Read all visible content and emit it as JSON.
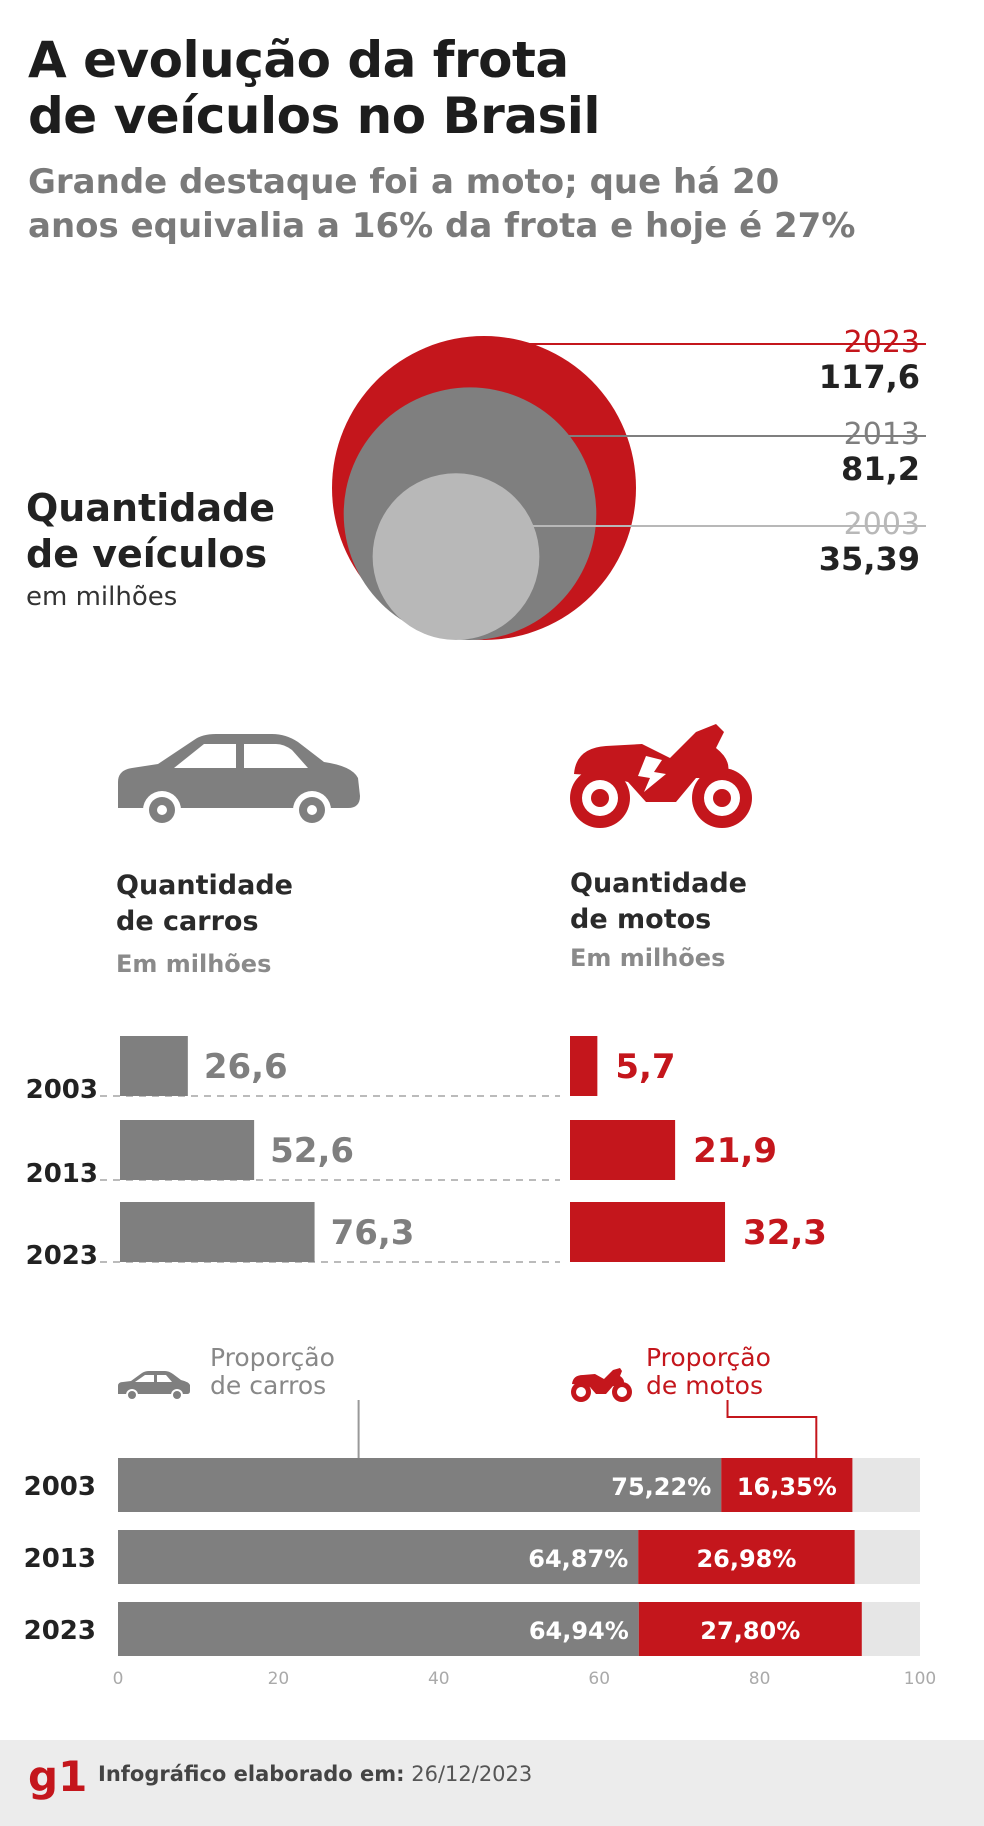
{
  "header": {
    "title_line1": "A evolução da frota",
    "title_line2": "de veículos no Brasil",
    "subtitle_line1": "Grande destaque foi a moto; que há 20",
    "subtitle_line2": "anos equivalia a 16% da frota e hoje é 27%"
  },
  "colors": {
    "red": "#c4161c",
    "gray": "#7f7f7f",
    "light_gray": "#b8b8b8",
    "track": "#e6e6e6"
  },
  "icons": {
    "car": "car-icon",
    "moto": "motorcycle-icon"
  },
  "chart_data": [
    {
      "type": "bubble",
      "title_line1": "Quantidade",
      "title_line2": "de veículos",
      "unit": "em milhões",
      "items": [
        {
          "year": "2023",
          "value": 117.6,
          "label": "117,6"
        },
        {
          "year": "2013",
          "value": 81.2,
          "label": "81,2"
        },
        {
          "year": "2003",
          "value": 35.39,
          "label": "35,39"
        }
      ]
    },
    {
      "type": "bar",
      "orientation": "horizontal",
      "title_line1": "Quantidade",
      "title_line2": "de carros",
      "unit": "Em milhões",
      "categories": [
        "2003",
        "2013",
        "2023"
      ],
      "values": [
        26.6,
        52.6,
        76.3
      ],
      "labels": [
        "26,6",
        "52,6",
        "76,3"
      ]
    },
    {
      "type": "bar",
      "orientation": "horizontal",
      "title_line1": "Quantidade",
      "title_line2": "de motos",
      "unit": "Em milhões",
      "categories": [
        "2003",
        "2013",
        "2023"
      ],
      "values": [
        5.7,
        21.9,
        32.3
      ],
      "labels": [
        "5,7",
        "21,9",
        "32,3"
      ]
    },
    {
      "type": "stacked-bar",
      "orientation": "horizontal",
      "categories": [
        "2003",
        "2013",
        "2023"
      ],
      "xlim": [
        0,
        100
      ],
      "ticks": [
        "0",
        "20",
        "40",
        "60",
        "80",
        "100"
      ],
      "series": [
        {
          "name_line1": "Proporção",
          "name_line2": "de carros",
          "values": [
            75.22,
            64.87,
            64.94
          ],
          "labels": [
            "75,22%",
            "64,87%",
            "64,94%"
          ]
        },
        {
          "name_line1": "Proporção",
          "name_line2": "de motos",
          "values": [
            16.35,
            26.98,
            27.8
          ],
          "labels": [
            "16,35%",
            "26,98%",
            "27,80%"
          ]
        }
      ]
    }
  ],
  "footer": {
    "logo": "g1",
    "label": "Infográfico elaborado em:",
    "date": "26/12/2023"
  }
}
